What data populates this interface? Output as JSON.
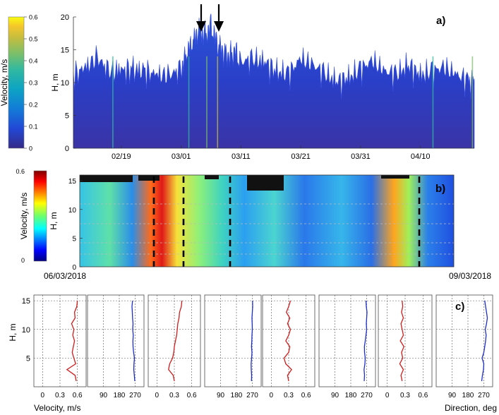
{
  "chart_data": [
    {
      "type": "area",
      "panel_label": "a)",
      "ylabel": "H, m",
      "xlabel": "",
      "ylim": [
        0,
        20
      ],
      "y_ticks": [
        0,
        5,
        10,
        15,
        20
      ],
      "x_tick_labels": [
        "02/19",
        "03/01",
        "03/11",
        "03/21",
        "03/31",
        "04/10"
      ],
      "x_range_days": [
        -8,
        59
      ],
      "x_tick_days": [
        0,
        10,
        20,
        30,
        40,
        50
      ],
      "colorbar": {
        "label": "Velocity, m/s",
        "range": [
          0,
          0.6
        ],
        "ticks": [
          0,
          0.1,
          0.2,
          0.3,
          0.4,
          0.5,
          0.6
        ],
        "colormap": "parula"
      },
      "series": [
        {
          "x_days": [
            -8,
            -6,
            -4,
            -2,
            0,
            2,
            4,
            6,
            8,
            10,
            11,
            12,
            13,
            14,
            15,
            16,
            17,
            18,
            19,
            20,
            22,
            24,
            26,
            28,
            30,
            32,
            34,
            36,
            38,
            40,
            42,
            44,
            46,
            48,
            50,
            52,
            54,
            56,
            58,
            59
          ],
          "values": [
            11.6,
            12.8,
            14.3,
            12.2,
            12.4,
            12.5,
            12.2,
            11.7,
            11.6,
            12.6,
            15.2,
            16.8,
            18.8,
            17.8,
            19.2,
            16.6,
            15.3,
            14.6,
            15.3,
            13.6,
            14.1,
            13.6,
            12.1,
            11.9,
            14.1,
            13.2,
            11.9,
            10.6,
            11.2,
            12.6,
            13.8,
            12.2,
            11.8,
            13.1,
            11.6,
            12.3,
            12.8,
            11.7,
            10.8,
            10.6
          ]
        }
      ],
      "annotations": [
        "arrow",
        "arrow"
      ]
    },
    {
      "type": "heatmap",
      "panel_label": "b)",
      "ylabel": "H, m",
      "xlabel": "",
      "ylim": [
        0,
        16
      ],
      "y_ticks": [
        0,
        5,
        10,
        15
      ],
      "x_start_label": "06/03/2018",
      "x_end_label": "09/03/2018",
      "colorbar": {
        "label": "Velocity, m/s",
        "range": [
          0,
          0.6
        ],
        "ticks": [
          0,
          0.6
        ],
        "colormap": "jet"
      }
    },
    {
      "type": "line",
      "panel_label": "c)",
      "ylabel": "H, m",
      "ylim": [
        0,
        16
      ],
      "y_ticks": [
        5,
        10,
        15
      ],
      "depths": [
        1,
        2,
        3,
        4,
        5,
        6,
        7,
        8,
        9,
        10,
        11,
        12,
        13,
        14,
        15
      ],
      "velocity_ticks": [
        "0",
        "0.3",
        "0.6"
      ],
      "direction_ticks": [
        "90",
        "180",
        "270"
      ],
      "velocity_xlabel": "Velocity, m/s",
      "direction_xlabel": "Direction, deg",
      "profiles": [
        {
          "velocity": [
            0.58,
            0.56,
            0.42,
            0.57,
            0.54,
            0.51,
            0.53,
            0.55,
            0.52,
            0.54,
            0.5,
            0.56,
            0.55,
            0.59,
            0.6
          ],
          "direction": [
            268,
            265,
            262,
            263,
            266,
            261,
            258,
            257,
            259,
            256,
            258,
            255,
            254,
            252,
            255
          ]
        },
        {
          "velocity": [
            0.3,
            0.28,
            0.2,
            0.22,
            0.27,
            0.29,
            0.3,
            0.32,
            0.34,
            0.35,
            0.36,
            0.38,
            0.39,
            0.42,
            0.43
          ],
          "direction": [
            265,
            266,
            264,
            263,
            266,
            268,
            265,
            267,
            268,
            270,
            269,
            268,
            270,
            272,
            271
          ]
        },
        {
          "velocity": [
            0.3,
            0.28,
            0.35,
            0.25,
            0.22,
            0.3,
            0.32,
            0.25,
            0.3,
            0.33,
            0.28,
            0.32,
            0.26,
            0.3,
            0.33
          ],
          "direction": [
            256,
            258,
            255,
            260,
            262,
            258,
            257,
            262,
            266,
            270,
            268,
            270,
            272,
            268,
            266
          ]
        },
        {
          "velocity": [
            0.25,
            0.23,
            0.27,
            0.21,
            0.26,
            0.24,
            0.28,
            0.22,
            0.27,
            0.25,
            0.23,
            0.27,
            0.24,
            0.26,
            0.25
          ],
          "direction": [
            258,
            262,
            268,
            270,
            260,
            270,
            275,
            280,
            283,
            278,
            285,
            290,
            285,
            280,
            275
          ]
        }
      ]
    }
  ]
}
